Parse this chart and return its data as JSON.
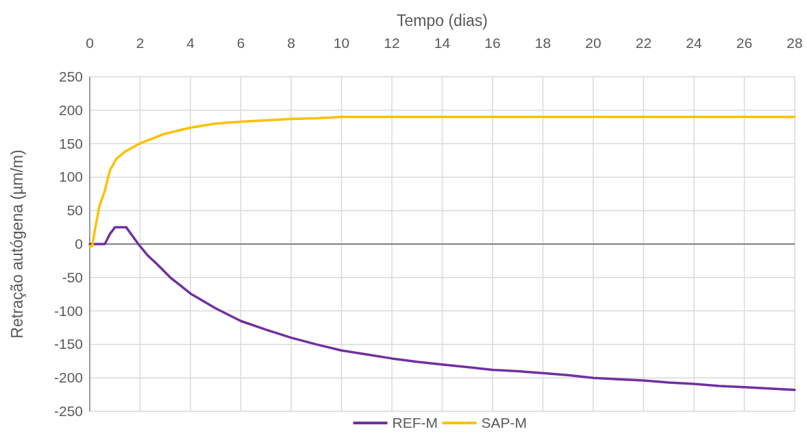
{
  "chart_data": {
    "type": "line",
    "xlabel": "Tempo (dias)",
    "ylabel": "Retração autógena (µm/m)",
    "xlim": [
      0,
      28
    ],
    "xticks": [
      0,
      2,
      4,
      6,
      8,
      10,
      12,
      14,
      16,
      18,
      20,
      22,
      24,
      26,
      28
    ],
    "ylim": [
      -250,
      250
    ],
    "yticks": [
      -250,
      -200,
      -150,
      -100,
      -50,
      0,
      50,
      100,
      150,
      200,
      250
    ],
    "grid": true,
    "legend": "bottom",
    "line_style": "solid",
    "marker": "none",
    "series": [
      {
        "name": "REF-M",
        "color": "#7030a0",
        "x": [
          0,
          0.3,
          0.6,
          0.8,
          1.0,
          1.45,
          1.7,
          1.93,
          2.3,
          2.7,
          3.2,
          4,
          5,
          6,
          7,
          8,
          9,
          10,
          11,
          12,
          13,
          14,
          15,
          16,
          17,
          18,
          19,
          20,
          21,
          22,
          23,
          24,
          25,
          26,
          27,
          28
        ],
        "values": [
          0,
          0,
          0,
          15,
          25,
          25,
          12,
          0,
          -17,
          -31,
          -50,
          -74,
          -96,
          -115,
          -128,
          -140,
          -150,
          -159,
          -165,
          -171,
          -176,
          -180,
          -184,
          -188,
          -190,
          -193,
          -196,
          -200,
          -202,
          -204,
          -207,
          -209,
          -212,
          -214,
          -216,
          -218
        ]
      },
      {
        "name": "SAP-M",
        "color": "#ffc000",
        "x": [
          0,
          0.1,
          0.2,
          0.38,
          0.6,
          0.8,
          1.07,
          1.4,
          1.97,
          2.5,
          3,
          4,
          5,
          6,
          7,
          8,
          9,
          10,
          12,
          14,
          16,
          18,
          20,
          22,
          24,
          26,
          28
        ],
        "values": [
          -3,
          -3,
          20,
          56,
          80,
          110,
          128,
          138,
          150,
          158,
          165,
          174,
          180,
          183,
          185,
          187,
          188,
          190,
          190,
          190,
          190,
          190,
          190,
          190,
          190,
          190,
          190
        ]
      }
    ]
  }
}
